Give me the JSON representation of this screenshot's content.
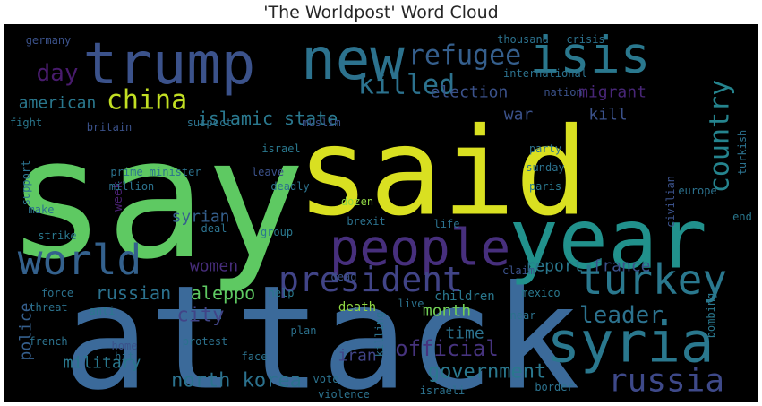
{
  "chart_data": {
    "type": "wordcloud",
    "title": "'The Worldpost' Word Cloud",
    "background": "#000000",
    "palette": "viridis",
    "words": [
      {
        "text": "say",
        "weight": 10,
        "color": "#5ec962",
        "x": 0.2,
        "y": 0.44,
        "size": 185
      },
      {
        "text": "said",
        "weight": 10,
        "color": "#d9e021",
        "x": 0.58,
        "y": 0.38,
        "size": 135
      },
      {
        "text": "attack",
        "weight": 10,
        "color": "#3b6a9a",
        "x": 0.42,
        "y": 0.83,
        "size": 160
      },
      {
        "text": "year",
        "weight": 8,
        "color": "#21918c",
        "x": 0.8,
        "y": 0.56,
        "size": 92
      },
      {
        "text": "trump",
        "weight": 7,
        "color": "#3b528b",
        "x": 0.22,
        "y": 0.1,
        "size": 64
      },
      {
        "text": "new",
        "weight": 7,
        "color": "#2c728e",
        "x": 0.46,
        "y": 0.09,
        "size": 64
      },
      {
        "text": "isis",
        "weight": 6,
        "color": "#2a788e",
        "x": 0.78,
        "y": 0.08,
        "size": 56
      },
      {
        "text": "people",
        "weight": 6,
        "color": "#472f7d",
        "x": 0.55,
        "y": 0.59,
        "size": 56
      },
      {
        "text": "world",
        "weight": 5,
        "color": "#34618d",
        "x": 0.1,
        "y": 0.62,
        "size": 46
      },
      {
        "text": "syria",
        "weight": 5,
        "color": "#2a788e",
        "x": 0.83,
        "y": 0.84,
        "size": 62
      },
      {
        "text": "turkey",
        "weight": 5,
        "color": "#2a788e",
        "x": 0.86,
        "y": 0.68,
        "size": 46
      },
      {
        "text": "president",
        "weight": 4,
        "color": "#414487",
        "x": 0.49,
        "y": 0.67,
        "size": 38
      },
      {
        "text": "refugee",
        "weight": 4,
        "color": "#355f8d",
        "x": 0.61,
        "y": 0.08,
        "size": 30
      },
      {
        "text": "killed",
        "weight": 4,
        "color": "#2c728e",
        "x": 0.53,
        "y": 0.16,
        "size": 30
      },
      {
        "text": "country",
        "weight": 4,
        "color": "#25848e",
        "x": 0.95,
        "y": 0.3,
        "size": 30
      },
      {
        "text": "russia",
        "weight": 4,
        "color": "#3e4989",
        "x": 0.88,
        "y": 0.94,
        "size": 36
      },
      {
        "text": "china",
        "weight": 4,
        "color": "#c2df23",
        "x": 0.19,
        "y": 0.2,
        "size": 30
      },
      {
        "text": "day",
        "weight": 3,
        "color": "#481b6d",
        "x": 0.07,
        "y": 0.13,
        "size": 26
      },
      {
        "text": "leader",
        "weight": 3,
        "color": "#2c728e",
        "x": 0.82,
        "y": 0.77,
        "size": 26
      },
      {
        "text": "islamic state",
        "weight": 2,
        "color": "#2a788e",
        "x": 0.35,
        "y": 0.25,
        "size": 20
      },
      {
        "text": "american",
        "weight": 2,
        "color": "#2a788e",
        "x": 0.07,
        "y": 0.21,
        "size": 18
      },
      {
        "text": "election",
        "weight": 2,
        "color": "#3b528b",
        "x": 0.62,
        "y": 0.18,
        "size": 18
      },
      {
        "text": "migrant",
        "weight": 2,
        "color": "#482677",
        "x": 0.81,
        "y": 0.18,
        "size": 18
      },
      {
        "text": "war",
        "weight": 2,
        "color": "#3b528b",
        "x": 0.68,
        "y": 0.24,
        "size": 18
      },
      {
        "text": "kill",
        "weight": 2,
        "color": "#3b528b",
        "x": 0.8,
        "y": 0.24,
        "size": 18
      },
      {
        "text": "north korea",
        "weight": 3,
        "color": "#2c728e",
        "x": 0.31,
        "y": 0.94,
        "size": 22
      },
      {
        "text": "government",
        "weight": 3,
        "color": "#2a788e",
        "x": 0.64,
        "y": 0.92,
        "size": 22
      },
      {
        "text": "official",
        "weight": 3,
        "color": "#46337e",
        "x": 0.59,
        "y": 0.86,
        "size": 24
      },
      {
        "text": "city",
        "weight": 3,
        "color": "#414487",
        "x": 0.26,
        "y": 0.77,
        "size": 22
      },
      {
        "text": "aleppo",
        "weight": 2,
        "color": "#5ec962",
        "x": 0.29,
        "y": 0.71,
        "size": 20
      },
      {
        "text": "russian",
        "weight": 2,
        "color": "#2c728e",
        "x": 0.17,
        "y": 0.71,
        "size": 20
      },
      {
        "text": "women",
        "weight": 2,
        "color": "#472d7b",
        "x": 0.28,
        "y": 0.64,
        "size": 18
      },
      {
        "text": "syrian",
        "weight": 2,
        "color": "#355f8d",
        "x": 0.26,
        "y": 0.51,
        "size": 18
      },
      {
        "text": "military",
        "weight": 2,
        "color": "#2a788e",
        "x": 0.13,
        "y": 0.9,
        "size": 18
      },
      {
        "text": "police",
        "weight": 2,
        "color": "#355f8d",
        "x": 0.03,
        "y": 0.81,
        "size": 18
      },
      {
        "text": "month",
        "weight": 2,
        "color": "#73d056",
        "x": 0.59,
        "y": 0.76,
        "size": 18
      },
      {
        "text": "time",
        "weight": 2,
        "color": "#2c728e",
        "x": 0.61,
        "y": 0.82,
        "size": 18
      },
      {
        "text": "iran",
        "weight": 2,
        "color": "#414487",
        "x": 0.47,
        "y": 0.88,
        "size": 18
      },
      {
        "text": "report",
        "weight": 2,
        "color": "#2a788e",
        "x": 0.73,
        "y": 0.64,
        "size": 18
      },
      {
        "text": "france",
        "weight": 2,
        "color": "#3b528b",
        "x": 0.82,
        "y": 0.64,
        "size": 18
      },
      {
        "text": "week",
        "weight": 1,
        "color": "#481f70",
        "x": 0.15,
        "y": 0.46,
        "size": 14
      },
      {
        "text": "prime minister",
        "weight": 1,
        "color": "#2c728e",
        "x": 0.2,
        "y": 0.39,
        "size": 12
      },
      {
        "text": "million",
        "weight": 1,
        "color": "#2c728e",
        "x": 0.17,
        "y": 0.43,
        "size": 12
      },
      {
        "text": "britain",
        "weight": 1,
        "color": "#3b528b",
        "x": 0.14,
        "y": 0.27,
        "size": 12
      },
      {
        "text": "germany",
        "weight": 1,
        "color": "#3b528b",
        "x": 0.06,
        "y": 0.04,
        "size": 12
      },
      {
        "text": "fight",
        "weight": 1,
        "color": "#2a788e",
        "x": 0.03,
        "y": 0.26,
        "size": 12
      },
      {
        "text": "suspect",
        "weight": 1,
        "color": "#2c728e",
        "x": 0.27,
        "y": 0.26,
        "size": 12
      },
      {
        "text": "muslim",
        "weight": 1,
        "color": "#3b528b",
        "x": 0.42,
        "y": 0.26,
        "size": 12
      },
      {
        "text": "israel",
        "weight": 1,
        "color": "#2a788e",
        "x": 0.37,
        "y": 0.33,
        "size": 12
      },
      {
        "text": "leave",
        "weight": 1,
        "color": "#3b528b",
        "x": 0.35,
        "y": 0.39,
        "size": 12
      },
      {
        "text": "deadly",
        "weight": 1,
        "color": "#2c728e",
        "x": 0.38,
        "y": 0.43,
        "size": 12
      },
      {
        "text": "dozen",
        "weight": 1,
        "color": "#90d743",
        "x": 0.47,
        "y": 0.47,
        "size": 12
      },
      {
        "text": "brexit",
        "weight": 1,
        "color": "#2c728e",
        "x": 0.48,
        "y": 0.52,
        "size": 12
      },
      {
        "text": "group",
        "weight": 1,
        "color": "#2a788e",
        "x": 0.36,
        "y": 0.55,
        "size": 12
      },
      {
        "text": "deal",
        "weight": 1,
        "color": "#2c728e",
        "x": 0.28,
        "y": 0.54,
        "size": 12
      },
      {
        "text": "dead",
        "weight": 1,
        "color": "#3b528b",
        "x": 0.45,
        "y": 0.67,
        "size": 12
      },
      {
        "text": "help",
        "weight": 1,
        "color": "#2a788e",
        "x": 0.37,
        "y": 0.71,
        "size": 12
      },
      {
        "text": "death",
        "weight": 1,
        "color": "#90d743",
        "x": 0.47,
        "y": 0.75,
        "size": 14
      },
      {
        "text": "live",
        "weight": 1,
        "color": "#2c728e",
        "x": 0.54,
        "y": 0.74,
        "size": 12
      },
      {
        "text": "children",
        "weight": 1,
        "color": "#2a788e",
        "x": 0.61,
        "y": 0.72,
        "size": 14
      },
      {
        "text": "near",
        "weight": 1,
        "color": "#2c728e",
        "x": 0.69,
        "y": 0.77,
        "size": 12
      },
      {
        "text": "claim",
        "weight": 1,
        "color": "#3b528b",
        "x": 0.68,
        "y": 0.65,
        "size": 12
      },
      {
        "text": "life",
        "weight": 1,
        "color": "#2c728e",
        "x": 0.59,
        "y": 0.53,
        "size": 12
      },
      {
        "text": "mexico",
        "weight": 1,
        "color": "#2a788e",
        "x": 0.71,
        "y": 0.71,
        "size": 12
      },
      {
        "text": "paris",
        "weight": 1,
        "color": "#2a788e",
        "x": 0.72,
        "y": 0.43,
        "size": 12
      },
      {
        "text": "sunday",
        "weight": 1,
        "color": "#2c728e",
        "x": 0.72,
        "y": 0.38,
        "size": 12
      },
      {
        "text": "party",
        "weight": 1,
        "color": "#2c728e",
        "x": 0.72,
        "y": 0.33,
        "size": 12
      },
      {
        "text": "end",
        "weight": 1,
        "color": "#2a788e",
        "x": 0.98,
        "y": 0.51,
        "size": 12
      },
      {
        "text": "europe",
        "weight": 1,
        "color": "#2c728e",
        "x": 0.92,
        "y": 0.44,
        "size": 12
      },
      {
        "text": "civilian",
        "weight": 1,
        "color": "#3b528b",
        "x": 0.88,
        "y": 0.47,
        "size": 12
      },
      {
        "text": "turkish",
        "weight": 1,
        "color": "#2c728e",
        "x": 0.98,
        "y": 0.34,
        "size": 12
      },
      {
        "text": "international",
        "weight": 1,
        "color": "#2c728e",
        "x": 0.72,
        "y": 0.13,
        "size": 12
      },
      {
        "text": "nation",
        "weight": 1,
        "color": "#3b528b",
        "x": 0.74,
        "y": 0.18,
        "size": 12
      },
      {
        "text": "thousand",
        "weight": 1,
        "color": "#2c728e",
        "x": 0.69,
        "y": 0.04,
        "size": 12
      },
      {
        "text": "crisis",
        "weight": 1,
        "color": "#2c728e",
        "x": 0.77,
        "y": 0.04,
        "size": 12
      },
      {
        "text": "support",
        "weight": 1,
        "color": "#2c728e",
        "x": 0.03,
        "y": 0.42,
        "size": 12
      },
      {
        "text": "make",
        "weight": 1,
        "color": "#2c728e",
        "x": 0.05,
        "y": 0.49,
        "size": 12
      },
      {
        "text": "strike",
        "weight": 1,
        "color": "#2a788e",
        "x": 0.07,
        "y": 0.56,
        "size": 12
      },
      {
        "text": "force",
        "weight": 1,
        "color": "#2c728e",
        "x": 0.07,
        "y": 0.71,
        "size": 12
      },
      {
        "text": "threat",
        "weight": 1,
        "color": "#2c728e",
        "x": 0.06,
        "y": 0.75,
        "size": 12
      },
      {
        "text": "french",
        "weight": 1,
        "color": "#2c728e",
        "x": 0.06,
        "y": 0.84,
        "size": 12
      },
      {
        "text": "anti",
        "weight": 1,
        "color": "#2a788e",
        "x": 0.13,
        "y": 0.76,
        "size": 12
      },
      {
        "text": "hit",
        "weight": 1,
        "color": "#2c728e",
        "x": 0.16,
        "y": 0.88,
        "size": 12
      },
      {
        "text": "home",
        "weight": 1,
        "color": "#3b528b",
        "x": 0.16,
        "y": 0.85,
        "size": 12
      },
      {
        "text": "protest",
        "weight": 1,
        "color": "#2c728e",
        "x": 0.27,
        "y": 0.84,
        "size": 12
      },
      {
        "text": "face",
        "weight": 1,
        "color": "#2c728e",
        "x": 0.33,
        "y": 0.88,
        "size": 12
      },
      {
        "text": "plan",
        "weight": 1,
        "color": "#2c728e",
        "x": 0.4,
        "y": 0.81,
        "size": 12
      },
      {
        "text": "vote",
        "weight": 1,
        "color": "#2c728e",
        "x": 0.43,
        "y": 0.94,
        "size": 12
      },
      {
        "text": "border",
        "weight": 1,
        "color": "#2c728e",
        "x": 0.73,
        "y": 0.96,
        "size": 12
      },
      {
        "text": "violence",
        "weight": 1,
        "color": "#2c728e",
        "x": 0.45,
        "y": 0.98,
        "size": 12
      },
      {
        "text": "israeli",
        "weight": 1,
        "color": "#2c728e",
        "x": 0.58,
        "y": 0.97,
        "size": 12
      },
      {
        "text": "bombing",
        "weight": 1,
        "color": "#2a788e",
        "x": 0.94,
        "y": 0.77,
        "size": 12
      },
      {
        "text": "killing",
        "weight": 1,
        "color": "#2c728e",
        "x": 0.5,
        "y": 0.82,
        "size": 12
      }
    ]
  }
}
